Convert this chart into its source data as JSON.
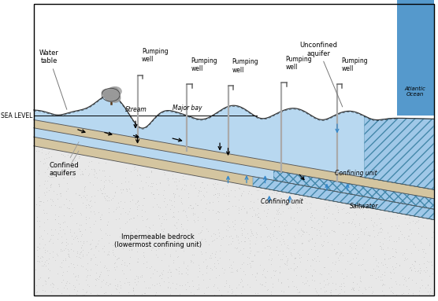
{
  "bg_color": "#ffffff",
  "aquifer_blue": "#b8d8f0",
  "confining_tan": "#d4c5a0",
  "bedrock_gray": "#e8e8e8",
  "bedrock_dot": "#b8b8b8",
  "ocean_blue": "#5599cc",
  "saltwater_blue": "#a0c8e8",
  "arrow_blue": "#3388cc",
  "well_gray": "#aaaaaa",
  "well_head": "#666666",
  "layer_line": "#555555",
  "terrain_line": "#333333",
  "sea_level_line": "#000000",
  "labels": {
    "water_table": "Water\ntable",
    "sea_level": "SEA LEVEL",
    "confined_aquifers": "Confined\naquifers",
    "impermeable_bedrock": "Impermeable bedrock\n(lowermost confining unit)",
    "confining_unit1": "Confining unit",
    "confining_unit2": "Confining unit",
    "saltwater": "Saltwater",
    "unconfined_aquifer": "Unconfined\naquifer",
    "atlantic_ocean": "Atlantic\nOcean",
    "stream": "Stream",
    "major_bay": "Major bay"
  }
}
